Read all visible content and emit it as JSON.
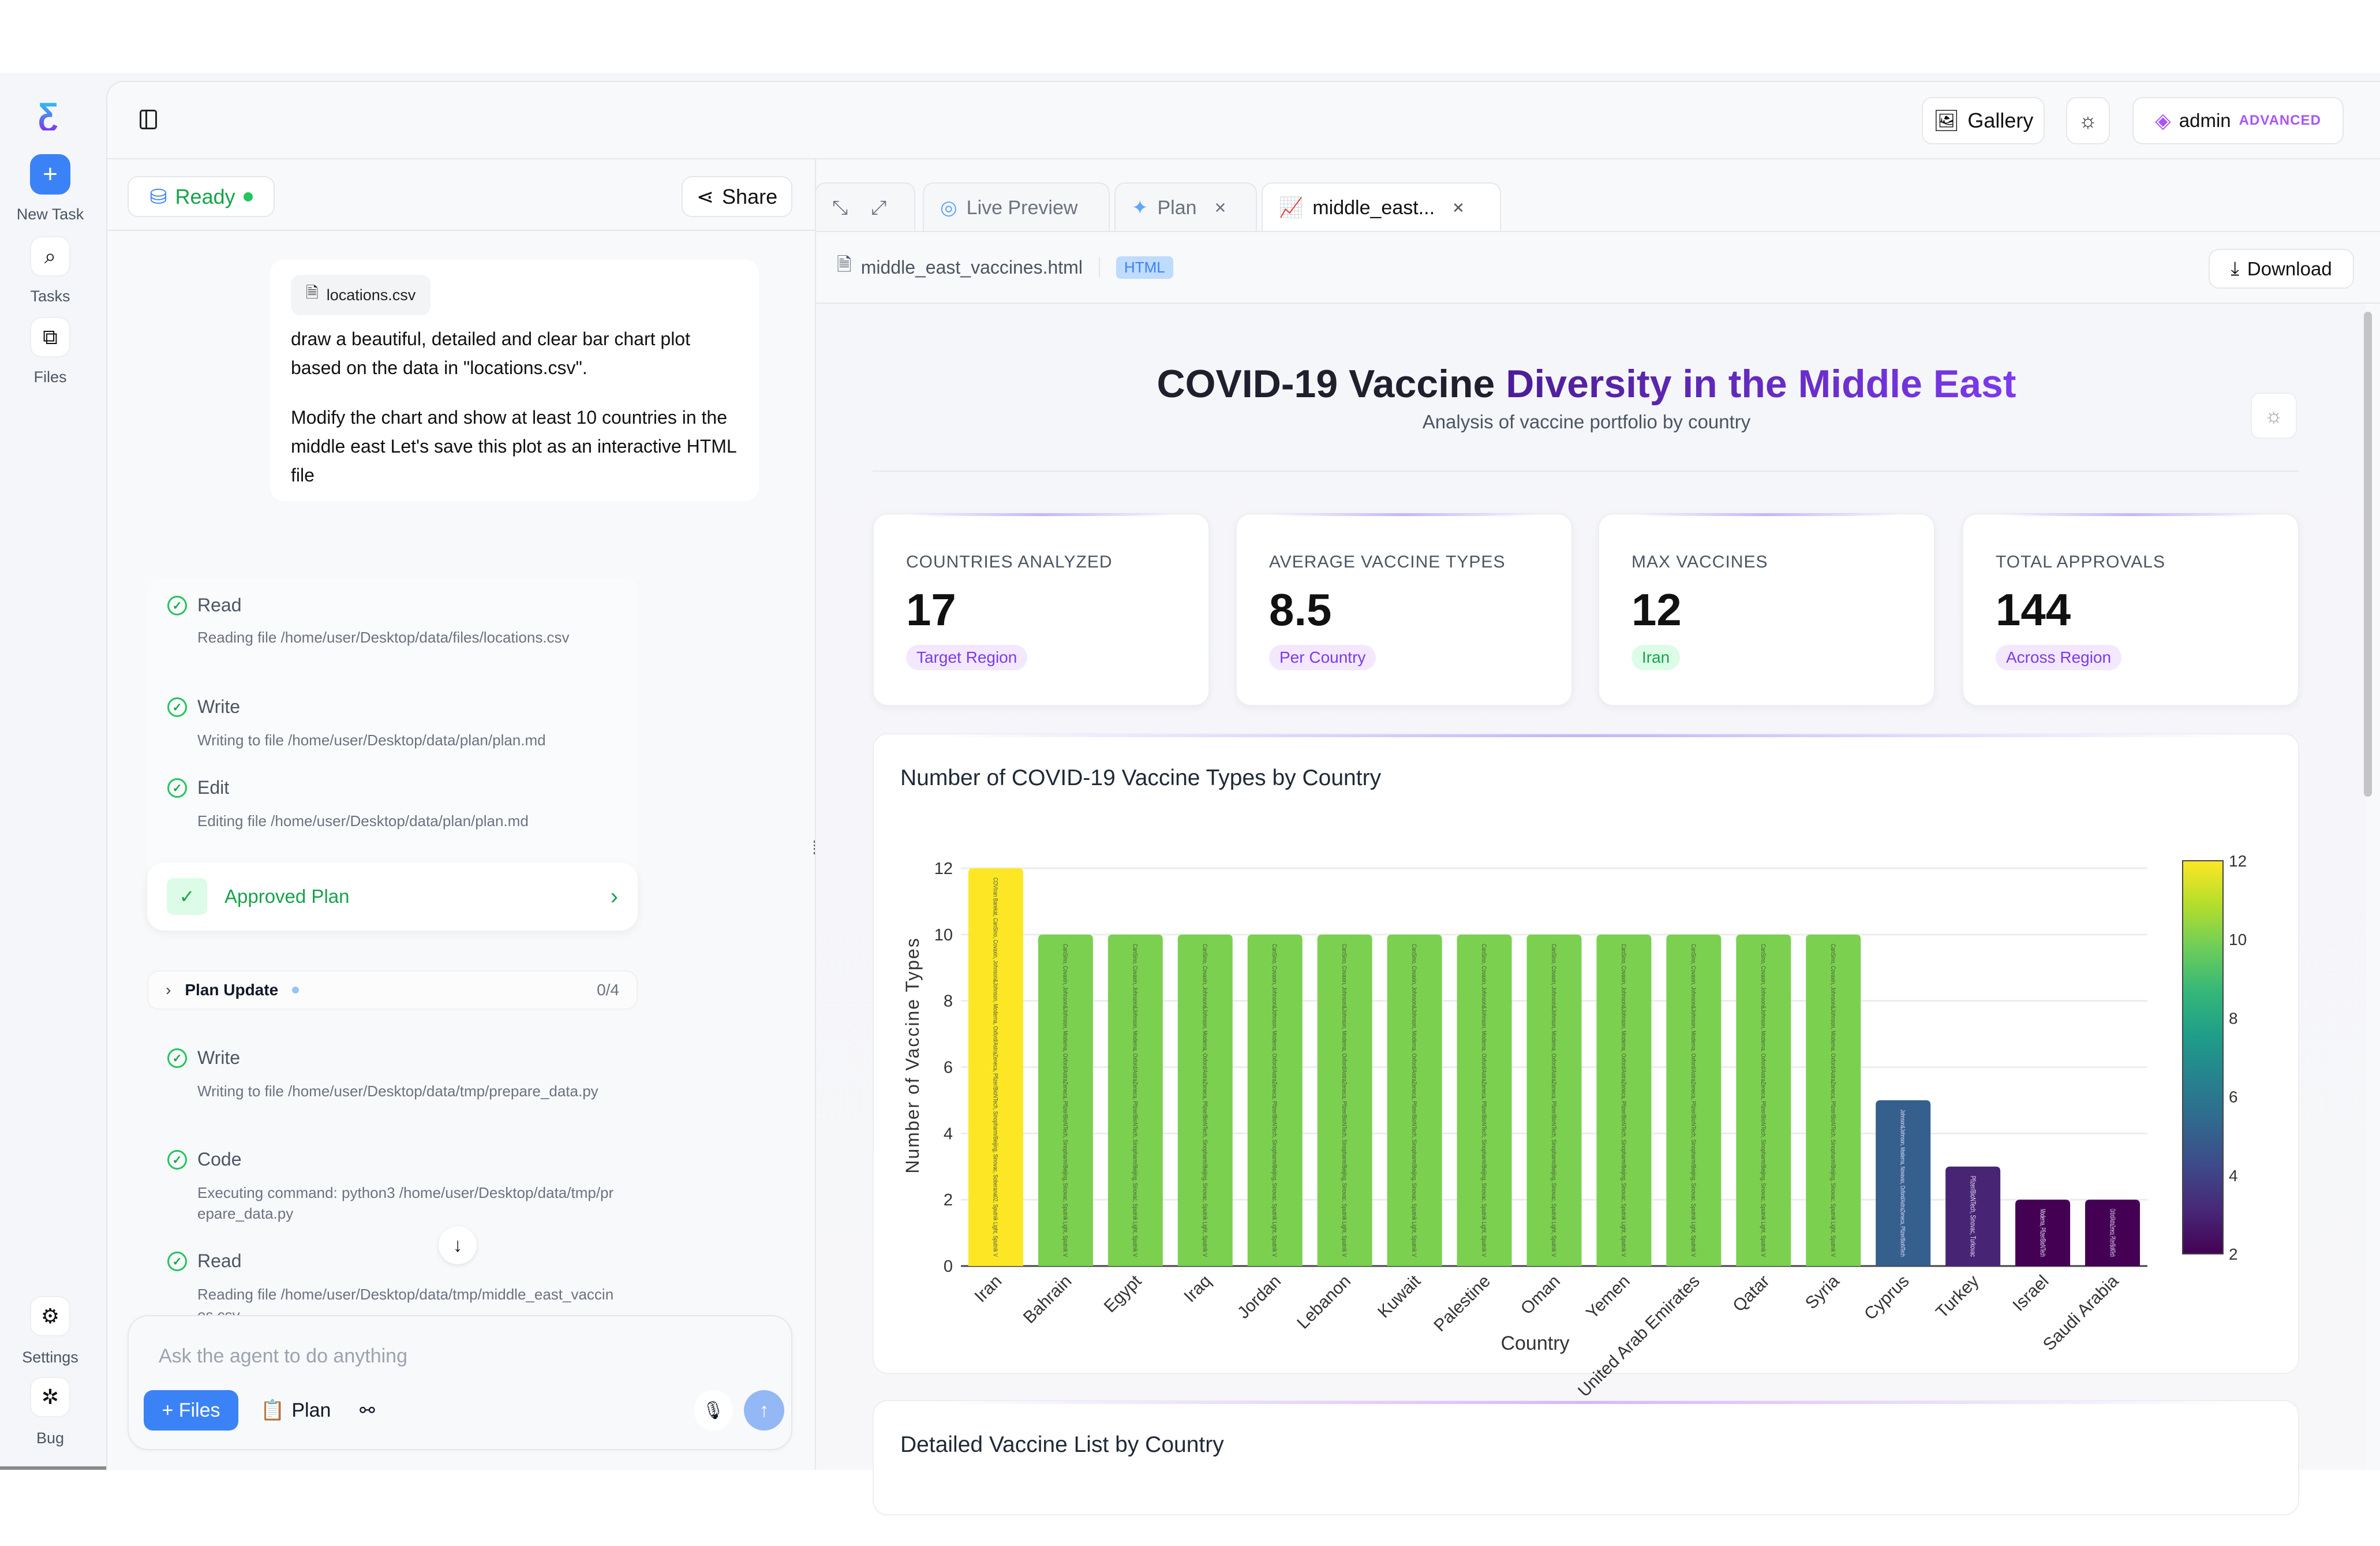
{
  "rail": {
    "new_task": "New Task",
    "tasks": "Tasks",
    "files": "Files",
    "settings": "Settings",
    "bug": "Bug"
  },
  "header": {
    "gallery": "Gallery",
    "user": "admin",
    "plan_badge": "ADVANCED"
  },
  "left": {
    "status": "Ready",
    "share": "Share",
    "message": {
      "attachment": "locations.csv",
      "p1": "draw a beautiful, detailed and clear bar chart plot based on the data in \"locations.csv\".",
      "p2": "Modify the chart and show at least 10 countries in the middle east Let's save this plot as an interactive HTML file"
    },
    "steps1": [
      {
        "label": "Read",
        "desc": "Reading file /home/user/Desktop/data/files/locations.csv"
      },
      {
        "label": "Write",
        "desc": "Writing to file /home/user/Desktop/data/plan/plan.md"
      },
      {
        "label": "Edit",
        "desc": "Editing file /home/user/Desktop/data/plan/plan.md"
      }
    ],
    "approved": "Approved Plan",
    "plan_update": {
      "label": "Plan Update",
      "count": "0/4"
    },
    "steps2": [
      {
        "label": "Write",
        "desc": "Writing to file /home/user/Desktop/data/tmp/prepare_data.py"
      },
      {
        "label": "Code",
        "desc": "Executing command: python3 /home/user/Desktop/data/tmp/prepare_data.py"
      },
      {
        "label": "Read",
        "desc": "Reading file /home/user/Desktop/data/tmp/middle_east_vaccines.csv"
      }
    ],
    "input_placeholder": "Ask the agent to do anything",
    "files_btn": "+ Files",
    "plan_btn": "Plan"
  },
  "tabs": [
    {
      "label": "Live Preview"
    },
    {
      "label": "Plan"
    },
    {
      "label": "middle_east..."
    }
  ],
  "filebar": {
    "name": "middle_east_vaccines.html",
    "type": "HTML",
    "download": "Download"
  },
  "page": {
    "title_a": "COVID-19 Vaccine ",
    "title_b": "Diversity in the Middle East",
    "subtitle": "Analysis of vaccine portfolio by country",
    "stats": [
      {
        "label": "COUNTRIES ANALYZED",
        "value": "17",
        "badge": "Target Region"
      },
      {
        "label": "AVERAGE VACCINE TYPES",
        "value": "8.5",
        "badge": "Per Country"
      },
      {
        "label": "MAX VACCINES",
        "value": "12",
        "badge": "Iran"
      },
      {
        "label": "TOTAL APPROVALS",
        "value": "144",
        "badge": "Across Region"
      }
    ],
    "detail_title": "Detailed Vaccine List by Country"
  },
  "colors": {
    "accent": "#3b82f6",
    "green": "#16a34a",
    "purple": "#7c3aed"
  },
  "chart_data": {
    "type": "bar",
    "title": "Number of COVID-19 Vaccine Types by Country",
    "xlabel": "Country",
    "ylabel": "Number of Vaccine Types",
    "ylim": [
      0,
      12
    ],
    "yticks": [
      0,
      2,
      4,
      6,
      8,
      10,
      12
    ],
    "categories": [
      "Iran",
      "Bahrain",
      "Egypt",
      "Iraq",
      "Jordan",
      "Lebanon",
      "Kuwait",
      "Palestine",
      "Oman",
      "Yemen",
      "United Arab Emirates",
      "Qatar",
      "Syria",
      "Cyprus",
      "Turkey",
      "Israel",
      "Saudi Arabia"
    ],
    "values": [
      12,
      10,
      10,
      10,
      10,
      10,
      10,
      10,
      10,
      10,
      10,
      10,
      10,
      5,
      3,
      2,
      2
    ],
    "bar_text": [
      "COVIran Barekat, CanSino, Covaxin, Johnson&Johnson, Moderna, Oxford/AstraZeneca, Pfizer/BioNTech, Sinopharm/Beijing, Sinovac, Soberana02, Sputnik Light, Sputnik V",
      "CanSino, Covaxin, Johnson&Johnson, Moderna, Oxford/AstraZeneca, Pfizer/BioNTech, Sinopharm/Beijing, Sinovac, Sputnik Light, Sputnik V",
      "CanSino, Covaxin, Johnson&Johnson, Moderna, Oxford/AstraZeneca, Pfizer/BioNTech, Sinopharm/Beijing, Sinovac, Sputnik Light, Sputnik V",
      "CanSino, Covaxin, Johnson&Johnson, Moderna, Oxford/AstraZeneca, Pfizer/BioNTech, Sinopharm/Beijing, Sinovac, Sputnik Light, Sputnik V",
      "CanSino, Covaxin, Johnson&Johnson, Moderna, Oxford/AstraZeneca, Pfizer/BioNTech, Sinopharm/Beijing, Sinovac, Sputnik Light, Sputnik V",
      "CanSino, Covaxin, Johnson&Johnson, Moderna, Oxford/AstraZeneca, Pfizer/BioNTech, Sinopharm/Beijing, Sinovac, Sputnik Light, Sputnik V",
      "CanSino, Covaxin, Johnson&Johnson, Moderna, Oxford/AstraZeneca, Pfizer/BioNTech, Sinopharm/Beijing, Sinovac, Sputnik Light, Sputnik V",
      "CanSino, Covaxin, Johnson&Johnson, Moderna, Oxford/AstraZeneca, Pfizer/BioNTech, Sinopharm/Beijing, Sinovac, Sputnik Light, Sputnik V",
      "CanSino, Covaxin, Johnson&Johnson, Moderna, Oxford/AstraZeneca, Pfizer/BioNTech, Sinopharm/Beijing, Sinovac, Sputnik Light, Sputnik V",
      "CanSino, Covaxin, Johnson&Johnson, Moderna, Oxford/AstraZeneca, Pfizer/BioNTech, Sinopharm/Beijing, Sinovac, Sputnik Light, Sputnik V",
      "CanSino, Covaxin, Johnson&Johnson, Moderna, Oxford/AstraZeneca, Pfizer/BioNTech, Sinopharm/Beijing, Sinovac, Sputnik Light, Sputnik V",
      "CanSino, Covaxin, Johnson&Johnson, Moderna, Oxford/AstraZeneca, Pfizer/BioNTech, Sinopharm/Beijing, Sinovac, Sputnik Light, Sputnik V",
      "CanSino, Covaxin, Johnson&Johnson, Moderna, Oxford/AstraZeneca, Pfizer/BioNTech, Sinopharm/Beijing, Sinovac, Sputnik Light, Sputnik V",
      "Johnson&Johnson, Moderna, Novavax, Oxford/AstraZeneca, Pfizer/BioNTech",
      "Pfizer/BioNTech, Sinovac, Turkovac",
      "Moderna, Pfizer/BioNTech",
      "Oxford/AstraZeneca, Pfizer/BioNTech"
    ],
    "colorscale": "viridis",
    "colorbar": {
      "range": [
        2,
        12
      ],
      "ticks": [
        2,
        4,
        6,
        8,
        10,
        12
      ]
    },
    "grid": true,
    "legend": "none"
  }
}
